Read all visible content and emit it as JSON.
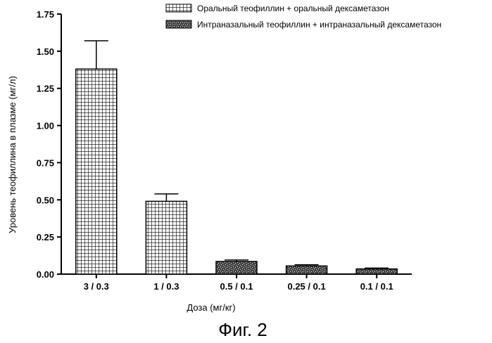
{
  "chart_data": {
    "type": "bar",
    "categories": [
      "3 / 0.3",
      "1 / 0.3",
      "0.5 / 0.1",
      "0.25 / 0.1",
      "0.1 / 0.1"
    ],
    "series": [
      {
        "name": "Оральный теофиллин + оральный дексаметазон",
        "values": [
          1.38,
          0.49,
          null,
          null,
          null
        ],
        "errors": [
          0.19,
          0.05,
          null,
          null,
          null
        ],
        "pattern": "grid"
      },
      {
        "name": "Интраназальный теофиллин + интраназальный дексаметазон",
        "values": [
          null,
          null,
          0.085,
          0.055,
          0.035
        ],
        "errors": [
          null,
          null,
          0.01,
          0.008,
          0.006
        ],
        "pattern": "speckle"
      }
    ],
    "xlabel": "Доза (мг/кг)",
    "ylabel": "Уровень теофиллина в плазме (мг/л)",
    "ylim": [
      0,
      1.75
    ],
    "yticks": [
      "0.00",
      "0.25",
      "0.50",
      "0.75",
      "1.00",
      "1.25",
      "1.50",
      "1.75"
    ],
    "grid": false,
    "legend_position": "top-right"
  },
  "caption": "Фиг. 2"
}
